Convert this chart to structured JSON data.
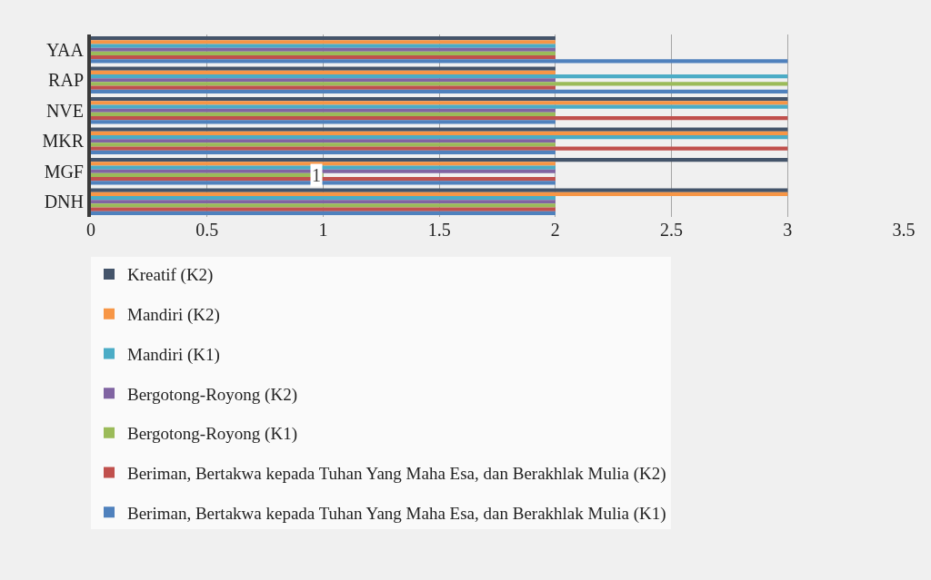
{
  "chart_data": {
    "type": "bar",
    "orientation": "horizontal",
    "categories": [
      "YAA",
      "RAP",
      "NVE",
      "MKR",
      "MGF",
      "DNH"
    ],
    "series": [
      {
        "name": "Kreatif (K2)",
        "color": "#44546a",
        "values": [
          2,
          2,
          3,
          3,
          3,
          3
        ]
      },
      {
        "name": "Mandiri (K2)",
        "color": "#f79646",
        "values": [
          2,
          2,
          3,
          3,
          2,
          3
        ]
      },
      {
        "name": "Mandiri (K1)",
        "color": "#4bacc6",
        "values": [
          2,
          3,
          3,
          3,
          2,
          2
        ]
      },
      {
        "name": "Bergotong-Royong (K2)",
        "color": "#8064a2",
        "values": [
          2,
          2,
          2,
          2,
          2,
          2
        ]
      },
      {
        "name": "Bergotong-Royong (K1)",
        "color": "#9bbb59",
        "values": [
          2,
          3,
          2,
          2,
          1,
          2
        ],
        "value_labels": [
          null,
          null,
          null,
          null,
          "1",
          null
        ]
      },
      {
        "name": "Beriman, Bertakwa kepada Tuhan Yang Maha Esa, dan Berakhlak Mulia (K2)",
        "color": "#c0504d",
        "values": [
          2,
          2,
          3,
          3,
          2,
          2
        ]
      },
      {
        "name": "Beriman, Bertakwa kepada Tuhan Yang Maha Esa, dan Berakhlak Mulia (K1)",
        "color": "#4f81bd",
        "values": [
          3,
          3,
          2,
          2,
          2,
          2
        ]
      }
    ],
    "xlim": [
      0,
      3.5
    ],
    "xticks": [
      0,
      0.5,
      1,
      1.5,
      2,
      2.5,
      3,
      3.5
    ],
    "grid": "x",
    "legend": "bottom"
  }
}
